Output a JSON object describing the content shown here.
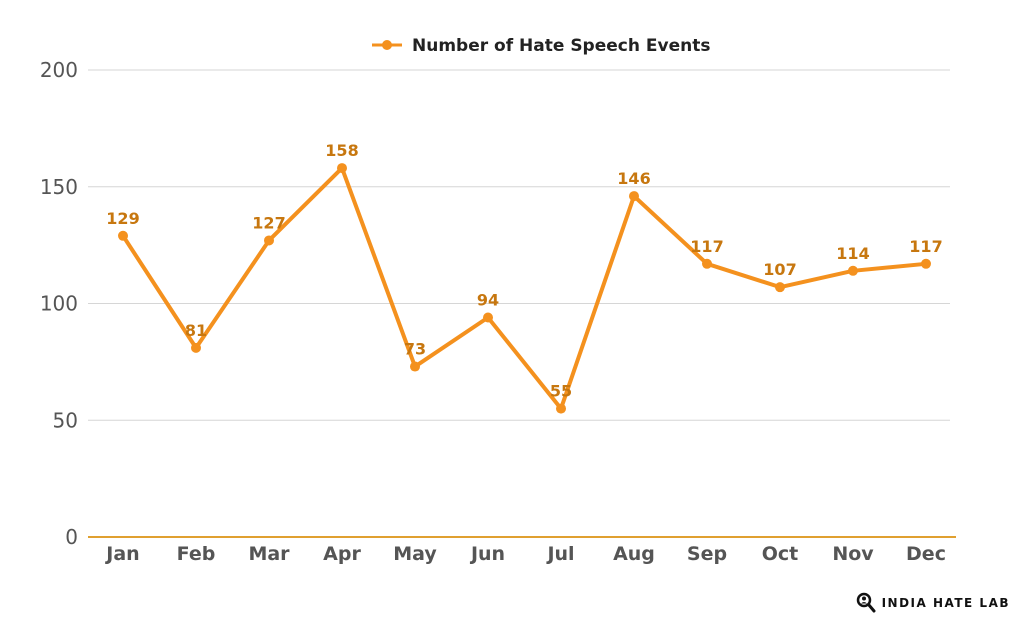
{
  "chart_data": {
    "type": "line",
    "categories": [
      "Jan",
      "Feb",
      "Mar",
      "Apr",
      "May",
      "Jun",
      "Jul",
      "Aug",
      "Sep",
      "Oct",
      "Nov",
      "Dec"
    ],
    "series": [
      {
        "name": "Number of Hate Speech Events",
        "values": [
          129,
          81,
          127,
          158,
          73,
          94,
          55,
          146,
          117,
          107,
          114,
          117
        ],
        "color": "#F4911E"
      }
    ],
    "ylim": [
      0,
      200
    ],
    "yticks": [
      0,
      50,
      100,
      150,
      200
    ],
    "grid": true,
    "legend_position": "top-center",
    "data_labels": true,
    "label_color": "#C7770F",
    "axis_color": "#E0A030"
  },
  "branding": {
    "text": "INDIA HATE LAB",
    "icon": "magnifier-person-icon"
  }
}
